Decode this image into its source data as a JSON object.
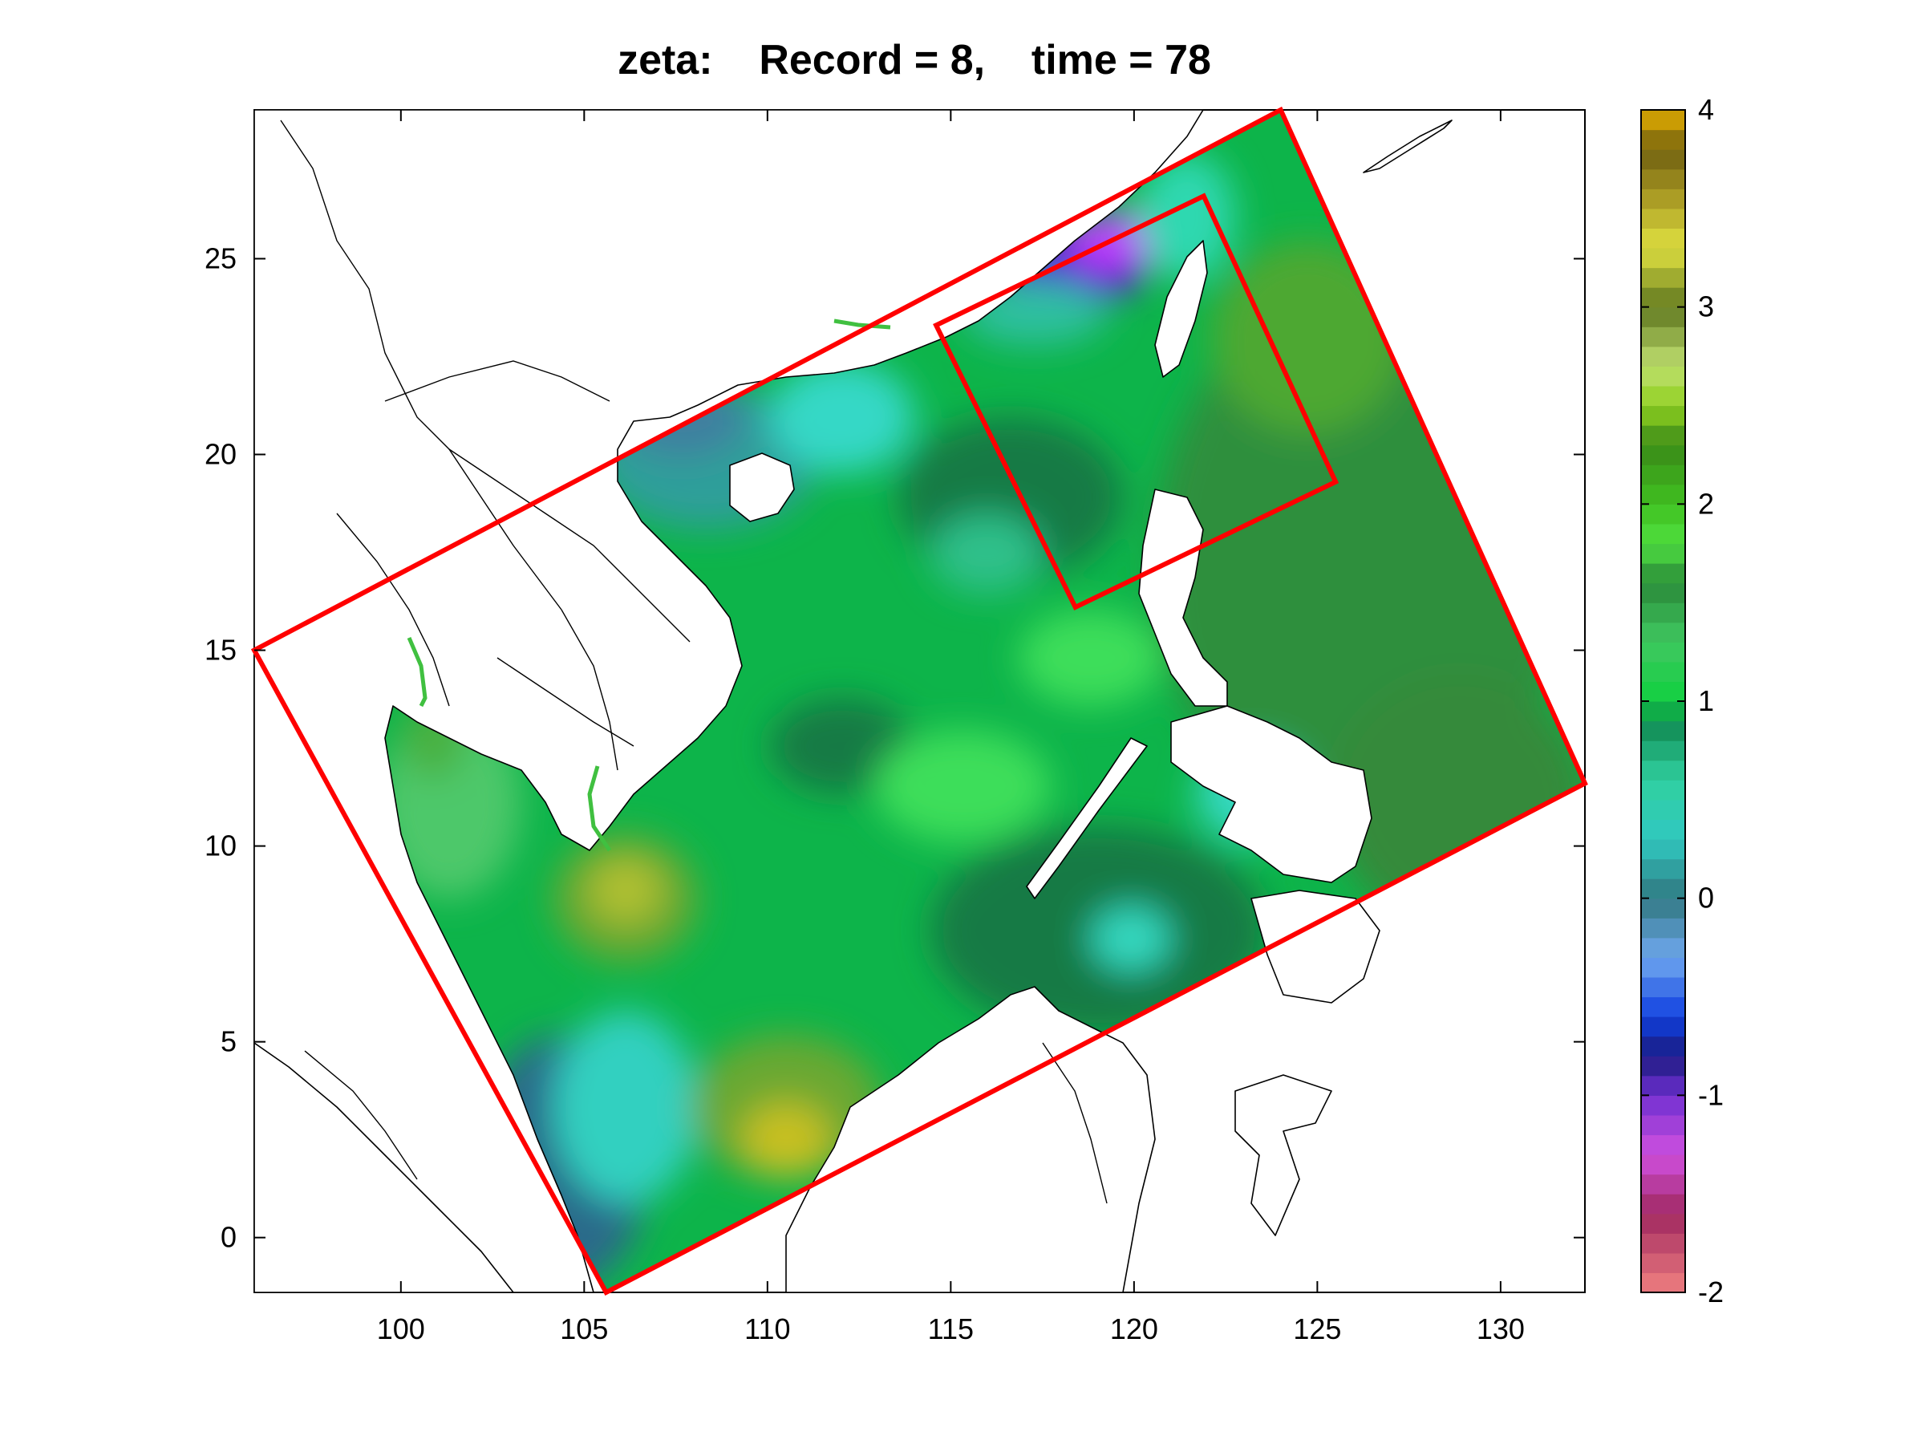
{
  "title": "zeta:    Record = 8,    time = 78",
  "map": {
    "xlim": [
      96,
      132.3
    ],
    "ylim": [
      -1.4,
      28.8
    ],
    "xticks": [
      100,
      105,
      110,
      115,
      120,
      125,
      130
    ],
    "yticks": [
      0,
      5,
      10,
      15,
      20,
      25
    ],
    "outer_domain_corners_lonlat": [
      [
        96.0,
        15.0
      ],
      [
        124.0,
        28.8
      ],
      [
        132.3,
        11.6
      ],
      [
        105.6,
        -1.4
      ]
    ],
    "inner_domain_corners_lonlat": [
      [
        114.6,
        23.3
      ],
      [
        121.9,
        26.6
      ],
      [
        125.5,
        19.3
      ],
      [
        118.4,
        16.1
      ]
    ],
    "domain_color": "#ff0000"
  },
  "colorbar": {
    "min": -2,
    "max": 4,
    "ticks": [
      4,
      3,
      2,
      1,
      0,
      -1,
      -2
    ]
  }
}
